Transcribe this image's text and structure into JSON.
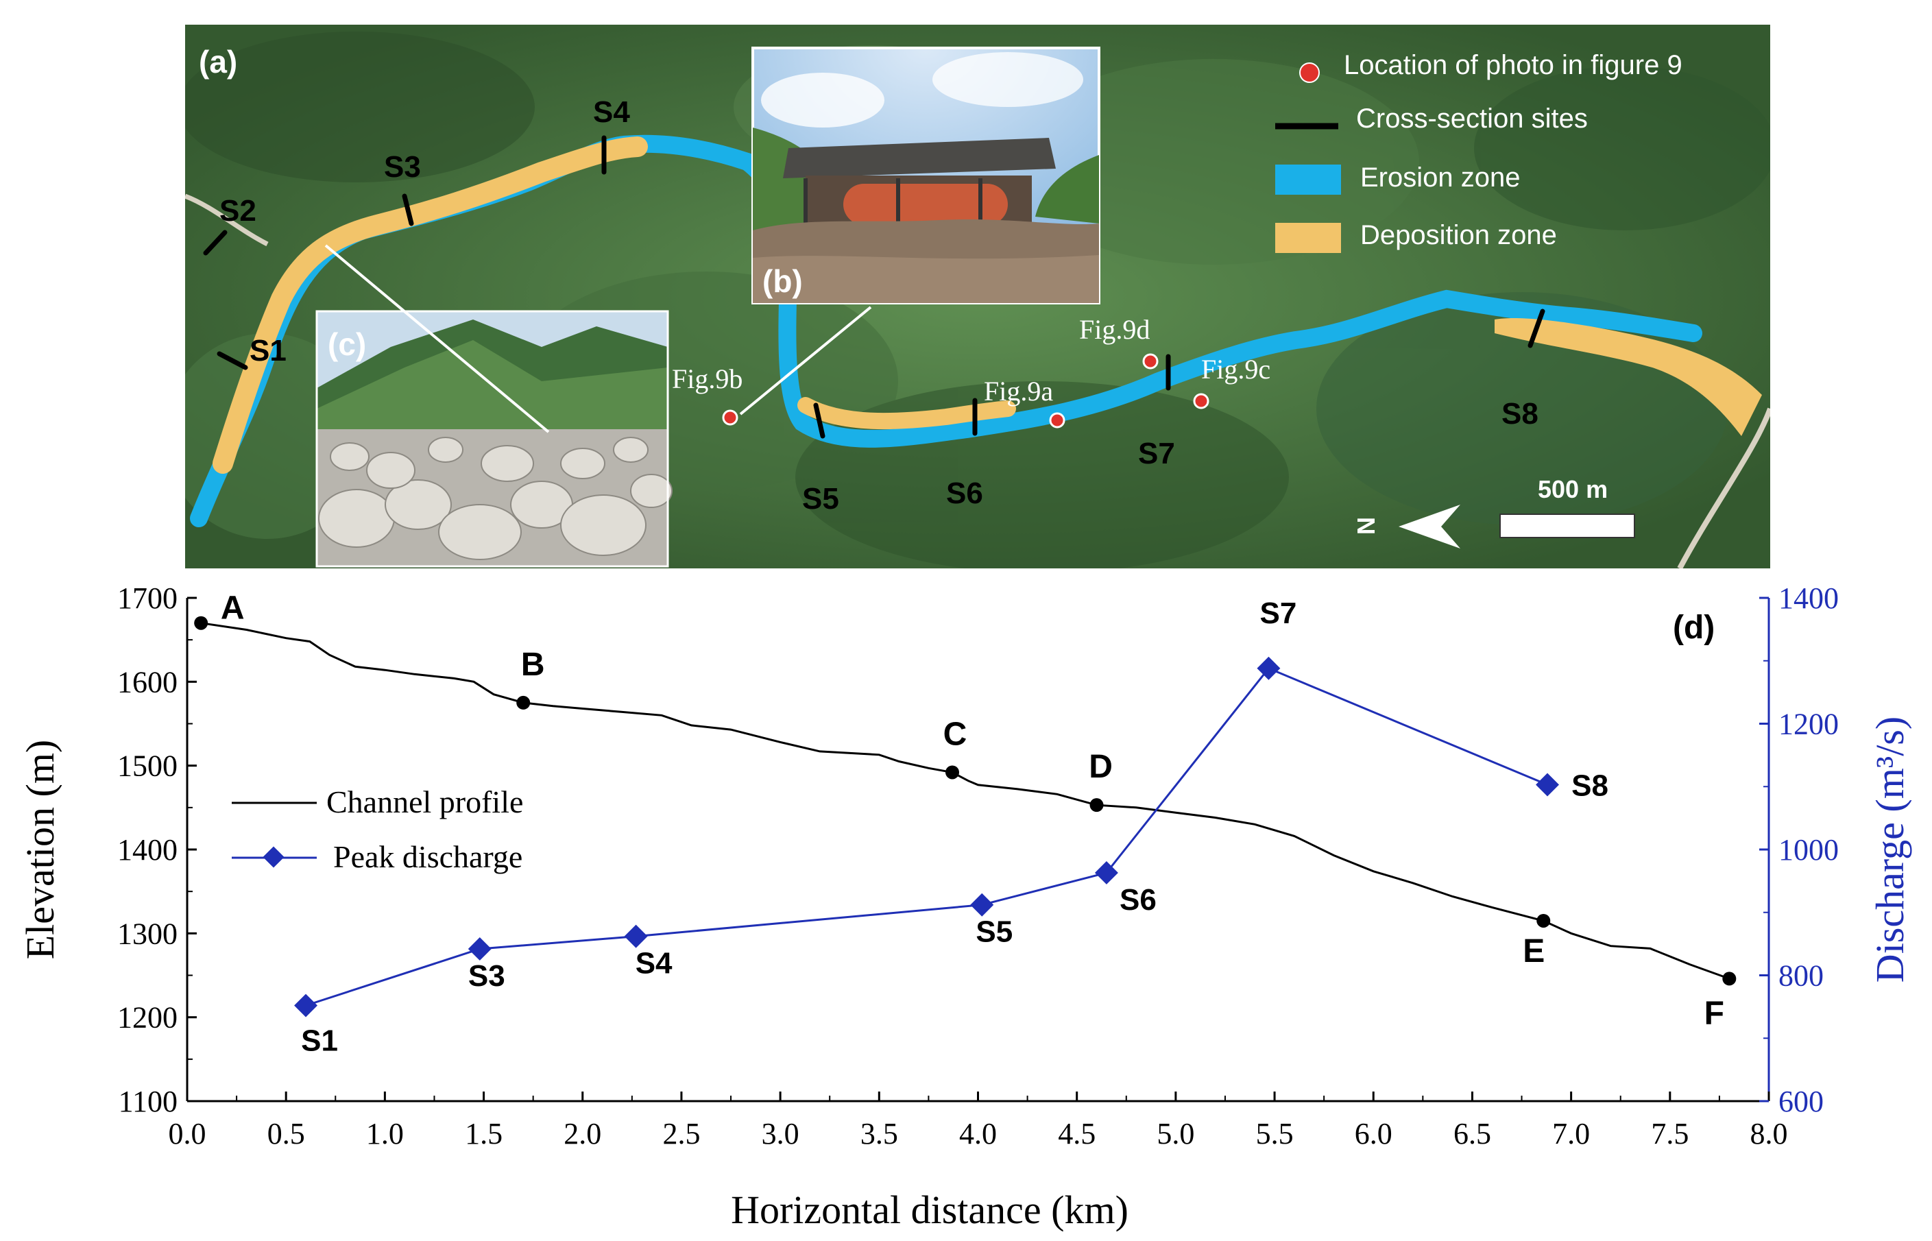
{
  "map": {
    "panel_label": "(a)",
    "legend": [
      {
        "label": "Location of photo in figure 9",
        "symbol": "red-dot",
        "color": "#e0322b"
      },
      {
        "label": "Cross-section sites",
        "symbol": "black-bar",
        "color": "#000000"
      },
      {
        "label": "Erosion zone",
        "symbol": "swatch",
        "color": "#1ab0e8"
      },
      {
        "label": "Deposition zone",
        "symbol": "swatch",
        "color": "#f2c46a"
      }
    ],
    "sections": [
      "S1",
      "S2",
      "S3",
      "S4",
      "S5",
      "S6",
      "S7",
      "S8"
    ],
    "photo_points": [
      "Fig.9a",
      "Fig.9b",
      "Fig.9c",
      "Fig.9d"
    ],
    "inset_b_label": "(b)",
    "inset_c_label": "(c)",
    "scale_bar_label": "500 m",
    "north_label": "N",
    "colors": {
      "vegetation": "#3f6b3a",
      "vegetation_light": "#5a8a4d",
      "erosion": "#1ab0e8",
      "deposition": "#f2c46a",
      "photo_dot": "#e0322b"
    }
  },
  "chart_data": {
    "type": "line",
    "panel_label": "(d)",
    "xlabel": "Horizontal distance (km)",
    "ylabel": "Elevation (m)",
    "y2label": "Discharge (m³/s)",
    "xlim": [
      0.0,
      8.0
    ],
    "ylim": [
      1100,
      1700
    ],
    "y2lim": [
      600,
      1400
    ],
    "xticks": [
      "0.0",
      "0.5",
      "1.0",
      "1.5",
      "2.0",
      "2.5",
      "3.0",
      "3.5",
      "4.0",
      "4.5",
      "5.0",
      "5.5",
      "6.0",
      "6.5",
      "7.0",
      "7.5",
      "8.0"
    ],
    "yticks": [
      "1100",
      "1200",
      "1300",
      "1400",
      "1500",
      "1600",
      "1700"
    ],
    "y2ticks": [
      "600",
      "800",
      "1000",
      "1200",
      "1400"
    ],
    "series": [
      {
        "name": "Channel profile",
        "color": "#000000",
        "axis": "left",
        "points": [
          [
            0.07,
            1670
          ],
          [
            0.3,
            1662
          ],
          [
            0.5,
            1652
          ],
          [
            0.62,
            1648
          ],
          [
            0.72,
            1632
          ],
          [
            0.85,
            1618
          ],
          [
            1.0,
            1614
          ],
          [
            1.15,
            1609
          ],
          [
            1.35,
            1604
          ],
          [
            1.45,
            1600
          ],
          [
            1.55,
            1585
          ],
          [
            1.7,
            1575
          ],
          [
            1.85,
            1571
          ],
          [
            2.0,
            1568
          ],
          [
            2.2,
            1564
          ],
          [
            2.4,
            1560
          ],
          [
            2.55,
            1548
          ],
          [
            2.75,
            1543
          ],
          [
            3.0,
            1528
          ],
          [
            3.2,
            1517
          ],
          [
            3.5,
            1513
          ],
          [
            3.6,
            1505
          ],
          [
            3.75,
            1497
          ],
          [
            3.87,
            1492
          ],
          [
            3.95,
            1482
          ],
          [
            4.0,
            1477
          ],
          [
            4.2,
            1472
          ],
          [
            4.4,
            1466
          ],
          [
            4.6,
            1453
          ],
          [
            4.8,
            1450
          ],
          [
            5.0,
            1444
          ],
          [
            5.2,
            1438
          ],
          [
            5.4,
            1430
          ],
          [
            5.6,
            1416
          ],
          [
            5.8,
            1393
          ],
          [
            6.0,
            1374
          ],
          [
            6.2,
            1360
          ],
          [
            6.4,
            1344
          ],
          [
            6.6,
            1331
          ],
          [
            6.86,
            1315
          ],
          [
            7.0,
            1300
          ],
          [
            7.2,
            1285
          ],
          [
            7.4,
            1282
          ],
          [
            7.6,
            1263
          ],
          [
            7.8,
            1246
          ]
        ]
      },
      {
        "name": "Peak discharge",
        "color": "#1f2fb5",
        "axis": "right",
        "marker": "diamond",
        "points": [
          [
            0.6,
            752
          ],
          [
            1.48,
            842
          ],
          [
            2.27,
            862
          ],
          [
            4.02,
            912
          ],
          [
            4.65,
            963
          ],
          [
            5.47,
            1288
          ],
          [
            6.88,
            1103
          ]
        ],
        "labels": [
          "S1",
          "S3",
          "S4",
          "S5",
          "S6",
          "S7",
          "S8"
        ]
      }
    ],
    "profile_points": [
      {
        "label": "A",
        "x": 0.07,
        "y": 1670
      },
      {
        "label": "B",
        "x": 1.7,
        "y": 1575
      },
      {
        "label": "C",
        "x": 3.87,
        "y": 1492
      },
      {
        "label": "D",
        "x": 4.6,
        "y": 1453
      },
      {
        "label": "E",
        "x": 6.86,
        "y": 1315
      },
      {
        "label": "F",
        "x": 7.8,
        "y": 1246
      }
    ],
    "legend": [
      "Channel profile",
      "Peak discharge"
    ],
    "legend_position": "left-center"
  }
}
